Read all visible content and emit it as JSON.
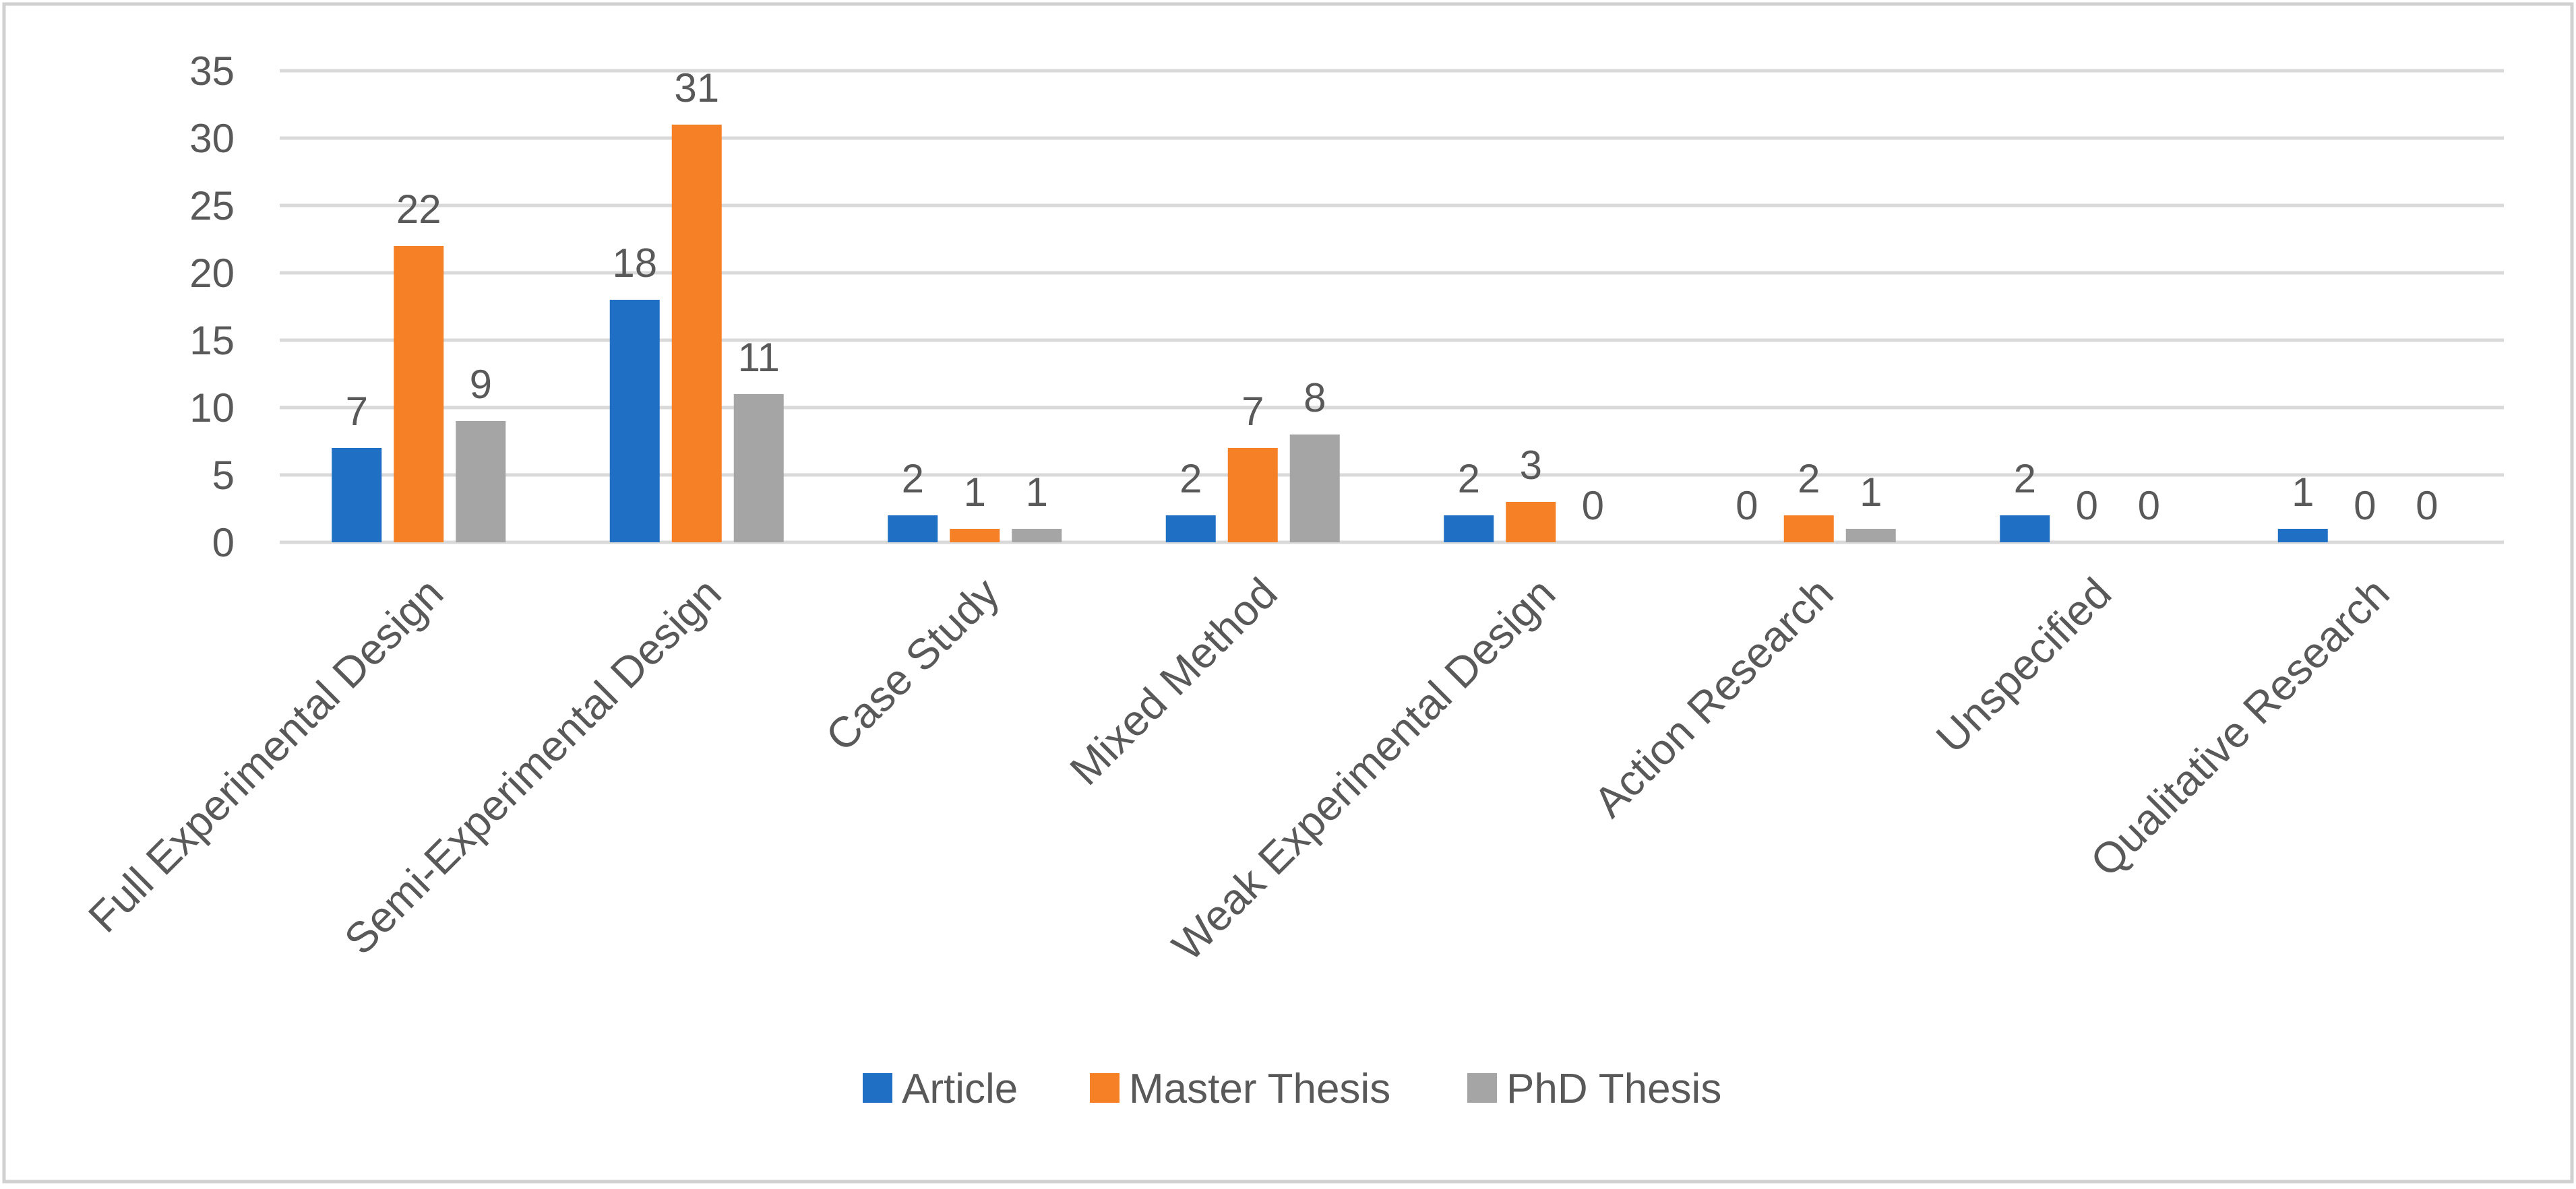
{
  "chart_data": {
    "type": "bar",
    "title": "",
    "xlabel": "",
    "ylabel": "",
    "ylim": [
      0,
      35
    ],
    "yticks": [
      0,
      5,
      10,
      15,
      20,
      25,
      30,
      35
    ],
    "grid": "horizontal",
    "legend_position": "bottom",
    "categories": [
      "Full Experimental Design",
      "Semi-Experimental Design",
      "Case Study",
      "Mixed Method",
      "Weak Experimental Design",
      "Action Research",
      "Unspecified",
      "Qualitative Research"
    ],
    "series": [
      {
        "name": "Article",
        "color": "#1f6fc5",
        "values": [
          7,
          18,
          2,
          2,
          2,
          0,
          2,
          1
        ]
      },
      {
        "name": "Master Thesis",
        "color": "#f58025",
        "values": [
          22,
          31,
          1,
          7,
          3,
          2,
          0,
          0
        ]
      },
      {
        "name": "PhD Thesis",
        "color": "#a5a5a5",
        "values": [
          9,
          11,
          1,
          8,
          0,
          1,
          0,
          0
        ]
      }
    ],
    "colors": {
      "gridline": "#d9d9d9",
      "text": "#595959",
      "border": "#d0d0d0"
    }
  }
}
